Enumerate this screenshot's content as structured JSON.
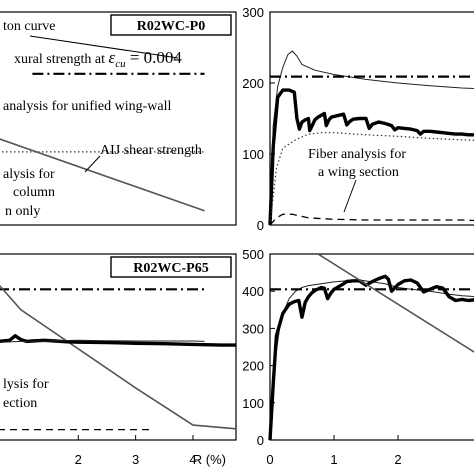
{
  "chart_data": [
    {
      "type": "line",
      "panel": "top-left",
      "label": "R02WC-P0",
      "annotations": {
        "l1": "ton curve",
        "l2": "xural strength at ",
        "l2_var": "ε",
        "l2_sub": "cu",
        "l2_val": " = 0.004",
        "l3": "analysis for unified wing-wall",
        "l4": "AIJ shear strength",
        "l5": "alysis for",
        "l6": "column",
        "l7": "n only"
      },
      "xlim": [
        0.6,
        4.75
      ],
      "ylim": [
        0,
        300
      ],
      "xticks": [],
      "yticks": [],
      "series": [
        {
          "style": "dashdot-thick",
          "x": [
            1.2,
            4.2
          ],
          "y": [
            213,
            213
          ]
        },
        {
          "style": "dotted",
          "x": [
            0.6,
            4.2
          ],
          "y": [
            103,
            103
          ]
        },
        {
          "style": "solid-gray",
          "x": [
            0.6,
            4.2
          ],
          "y": [
            122,
            20
          ]
        }
      ]
    },
    {
      "type": "line",
      "panel": "top-right",
      "annotations": {
        "fiber1": "Fiber analysis for",
        "fiber2": "a wing section"
      },
      "xlim": [
        0,
        3.25
      ],
      "ylim": [
        0,
        300
      ],
      "yticks": [
        "0",
        "100",
        "200",
        "300"
      ],
      "series": [
        {
          "style": "thin",
          "x": [
            0,
            0.05,
            0.12,
            0.2,
            0.28,
            0.35,
            0.42,
            0.5,
            0.7,
            1.0,
            1.5,
            2.0,
            2.5,
            3.0,
            3.25
          ],
          "y": [
            0,
            140,
            195,
            222,
            240,
            245,
            238,
            226,
            218,
            212,
            205,
            200,
            196,
            193,
            192
          ]
        },
        {
          "style": "thick",
          "x": [
            0,
            0.05,
            0.12,
            0.2,
            0.3,
            0.38,
            0.42,
            0.46,
            0.5,
            0.55,
            0.6,
            0.62,
            0.66,
            0.7,
            0.75,
            0.85,
            0.88,
            0.92,
            0.96,
            1.05,
            1.15,
            1.2,
            1.25,
            1.3,
            1.4,
            1.5,
            1.55,
            1.6,
            1.7,
            1.8,
            1.9,
            1.95,
            2.0,
            2.1,
            2.2,
            2.3,
            2.35,
            2.4,
            2.5,
            2.6,
            2.7,
            2.8,
            2.9,
            3.0,
            3.1,
            3.25
          ],
          "y": [
            0,
            110,
            180,
            190,
            190,
            187,
            150,
            135,
            145,
            148,
            150,
            133,
            140,
            148,
            152,
            157,
            140,
            148,
            152,
            154,
            156,
            141,
            146,
            149,
            150,
            150,
            136,
            142,
            145,
            143,
            140,
            134,
            137,
            136,
            135,
            133,
            128,
            132,
            132,
            131,
            130,
            129,
            128,
            128,
            127,
            127
          ]
        },
        {
          "style": "dashdot-thick",
          "x": [
            0,
            3.25
          ],
          "y": [
            209,
            209
          ]
        },
        {
          "style": "dotted",
          "x": [
            0,
            0.1,
            0.2,
            0.4,
            0.6,
            0.8,
            1.0,
            1.5,
            2.0,
            2.5,
            3.0,
            3.25
          ],
          "y": [
            0,
            80,
            108,
            120,
            128,
            130,
            130,
            127,
            125,
            122,
            120,
            119
          ]
        },
        {
          "style": "dashed",
          "x": [
            0,
            0.1,
            0.2,
            0.35,
            0.6,
            1.0,
            1.5,
            2.0,
            2.5,
            3.0,
            3.25
          ],
          "y": [
            0,
            10,
            15,
            15,
            10,
            8,
            7,
            7,
            7,
            7,
            6
          ]
        }
      ]
    },
    {
      "type": "line",
      "panel": "bottom-left",
      "label": "R02WC-P65",
      "annotations": {
        "a1": "lysis for",
        "a2": "ection"
      },
      "xlim": [
        0.6,
        4.75
      ],
      "ylim": [
        0,
        500
      ],
      "xticks": [
        "2",
        "3",
        "4"
      ],
      "xlabel": "R (%)",
      "series": [
        {
          "style": "dashdot-thick",
          "x": [
            0.6,
            4.2
          ],
          "y": [
            405,
            405
          ]
        },
        {
          "style": "solid-gray",
          "x": [
            0.6,
            1.0,
            3.0,
            4.0,
            4.75
          ],
          "y": [
            420,
            350,
            140,
            40,
            30
          ]
        },
        {
          "style": "thick",
          "x": [
            0.6,
            0.8,
            0.9,
            1.0,
            1.1,
            1.2,
            1.4,
            1.6,
            1.8,
            2.0,
            2.5,
            3.0,
            3.5,
            4.0,
            4.3,
            4.5,
            4.75
          ],
          "y": [
            265,
            268,
            280,
            270,
            265,
            266,
            268,
            266,
            264,
            263,
            262,
            260,
            259,
            257,
            256,
            255,
            255
          ]
        },
        {
          "style": "thin",
          "x": [
            0.6,
            1.0,
            1.5,
            2.0,
            2.5,
            3.0,
            3.5,
            4.0,
            4.2
          ],
          "y": [
            262,
            265,
            266,
            268,
            267,
            266,
            266,
            266,
            265
          ]
        },
        {
          "style": "dashed",
          "x": [
            0.6,
            3.3
          ],
          "y": [
            28,
            28
          ]
        }
      ]
    },
    {
      "type": "line",
      "panel": "bottom-right",
      "xlim": [
        0,
        3.25
      ],
      "ylim": [
        0,
        500
      ],
      "yticks": [
        "0",
        "100",
        "200",
        "300",
        "400",
        "500"
      ],
      "xticks": [
        "0",
        "1",
        "2"
      ],
      "series": [
        {
          "style": "thin",
          "x": [
            0,
            0.05,
            0.1,
            0.15,
            0.2,
            0.3,
            0.4,
            0.5,
            0.6,
            0.8,
            1.0,
            1.2,
            1.4,
            1.6,
            1.8,
            2.0,
            2.2,
            2.5,
            2.8,
            3.0,
            3.25
          ],
          "y": [
            0,
            150,
            240,
            300,
            340,
            380,
            400,
            410,
            415,
            420,
            425,
            428,
            430,
            425,
            420,
            410,
            405,
            400,
            392,
            388,
            385
          ]
        },
        {
          "style": "thick",
          "x": [
            0,
            0.05,
            0.1,
            0.2,
            0.3,
            0.38,
            0.45,
            0.5,
            0.55,
            0.6,
            0.65,
            0.7,
            0.8,
            0.85,
            0.9,
            0.95,
            1.0,
            1.05,
            1.15,
            1.2,
            1.3,
            1.4,
            1.5,
            1.6,
            1.7,
            1.8,
            1.85,
            1.9,
            2.0,
            2.1,
            2.2,
            2.3,
            2.4,
            2.5,
            2.6,
            2.7,
            2.8,
            2.9,
            3.0,
            3.1,
            3.25
          ],
          "y": [
            0,
            150,
            280,
            340,
            365,
            372,
            375,
            330,
            370,
            385,
            395,
            402,
            410,
            408,
            380,
            395,
            405,
            410,
            420,
            426,
            428,
            428,
            416,
            426,
            434,
            440,
            432,
            400,
            418,
            428,
            430,
            422,
            398,
            405,
            412,
            408,
            385,
            375,
            378,
            375,
            378
          ]
        },
        {
          "style": "dashdot-thick",
          "x": [
            0,
            3.25
          ],
          "y": [
            405,
            405
          ]
        },
        {
          "style": "solid-gray",
          "x": [
            0.75,
            3.25
          ],
          "y": [
            500,
            230
          ]
        }
      ]
    }
  ]
}
